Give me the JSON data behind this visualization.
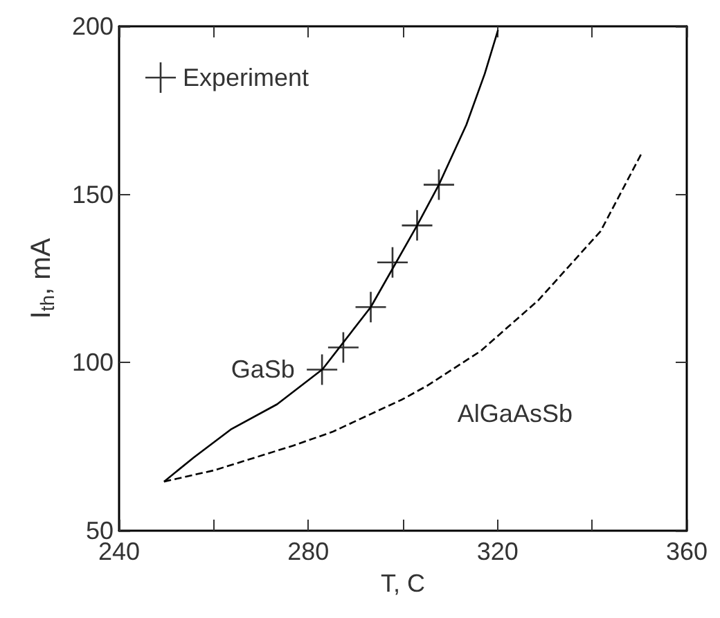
{
  "chart_data": {
    "type": "line",
    "xlabel": "T, C",
    "ylabel": "I$_{th}$, mA",
    "xlim": [
      240,
      360
    ],
    "xticks": [
      240,
      {
        "value": 260,
        "label": null
      },
      280,
      {
        "value": 300,
        "label": null
      },
      320,
      {
        "value": 340,
        "label": null
      },
      360
    ],
    "ylim": [
      50,
      200
    ],
    "yticks": [
      50,
      100,
      150,
      200
    ],
    "grid": false,
    "legend": "top left",
    "series": [
      {
        "type": "line",
        "name": "GaSb",
        "color": "#000000",
        "line_style": "solid",
        "x": [
          249.5,
          255.8,
          263.6,
          273.4,
          283,
          293.2,
          303,
          307.6,
          313.4,
          317.3,
          320.1
        ],
        "values": [
          64.6,
          71.8,
          80.1,
          87.6,
          98,
          116.5,
          140.8,
          152.9,
          170.7,
          185.9,
          198.9
        ]
      },
      {
        "type": "line",
        "name": "AlGaAsSb",
        "color": "#000000",
        "line_style": "dashed",
        "x": [
          249.5,
          260.2,
          276.8,
          285.1,
          299.8,
          305.1,
          316.4,
          328.6,
          341.8,
          350.4
        ],
        "values": [
          64.6,
          68.0,
          75.3,
          79.4,
          89.0,
          93.1,
          103.4,
          118.5,
          139.1,
          162.1
        ]
      },
      {
        "type": "scatter",
        "name": "Experiment",
        "color": "#000000",
        "marker": "cross",
        "x": [
          282.9,
          287.4,
          293.2,
          297.8,
          303.0,
          307.6
        ],
        "values": [
          97.9,
          104.5,
          116.5,
          129.8,
          140.8,
          152.9
        ]
      }
    ]
  }
}
